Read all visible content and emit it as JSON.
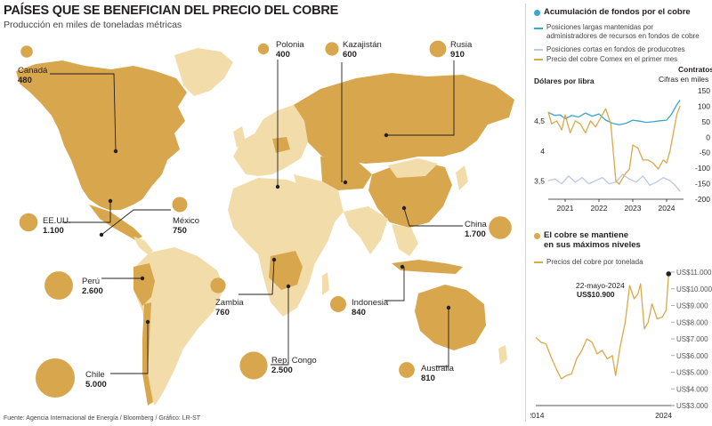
{
  "header": {
    "title": "PAÍSES QUE SE BENEFICIAN DEL PRECIO DEL COBRE",
    "subtitle": "Producción en miles de toneladas métricas"
  },
  "source": "Fuente: Agencia Internacional de Energía / Bloomberg / Gráfico: LR-ST",
  "colors": {
    "land_highlight": "#d8a64d",
    "land_other": "#f2dcaa",
    "bubble": "#d8a64d",
    "blue_line": "#3aa6cc",
    "light_blue_line": "#b9c9e2",
    "gold_line": "#d9a94a",
    "dot": "#231f20"
  },
  "chart_data": [
    {
      "type": "bubble-map",
      "title": "PAÍSES QUE SE BENEFICIAN DEL PRECIO DEL COBRE",
      "subtitle": "Producción en miles de toneladas métricas",
      "countries": [
        {
          "name": "Canadá",
          "value": 480,
          "value_label": "480"
        },
        {
          "name": "Polonia",
          "value": 400,
          "value_label": "400"
        },
        {
          "name": "Kazajistán",
          "value": 600,
          "value_label": "600"
        },
        {
          "name": "Rusia",
          "value": 910,
          "value_label": "910"
        },
        {
          "name": "EE.UU.",
          "value": 1100,
          "value_label": "1.100"
        },
        {
          "name": "México",
          "value": 750,
          "value_label": "750"
        },
        {
          "name": "China",
          "value": 1700,
          "value_label": "1.700"
        },
        {
          "name": "Perú",
          "value": 2600,
          "value_label": "2.600"
        },
        {
          "name": "Zambia",
          "value": 760,
          "value_label": "760"
        },
        {
          "name": "Indonesia",
          "value": 840,
          "value_label": "840"
        },
        {
          "name": "Rep. Congo",
          "value": 2500,
          "value_label": "2.500"
        },
        {
          "name": "Chile",
          "value": 5000,
          "value_label": "5.000"
        },
        {
          "name": "Australia",
          "value": 810,
          "value_label": "810"
        }
      ]
    },
    {
      "type": "line",
      "title": "Acumulación de fondos por el cobre",
      "left_axis_label": "Dólares por libra",
      "right_axis_label": "Contratos",
      "right_axis_sublabel": "Cifras en miles",
      "x_ticks": [
        "2021",
        "2022",
        "2023",
        "2024"
      ],
      "x_range": [
        2020.5,
        2024.5
      ],
      "left_ticks": [
        "3,5",
        "4",
        "4,5"
      ],
      "left_range": [
        3.2,
        5.0
      ],
      "right_ticks": [
        "150",
        "100",
        "50",
        "0",
        "-50",
        "-100",
        "-150",
        "-200"
      ],
      "right_range": [
        -200,
        150
      ],
      "series": [
        {
          "name": "Posiciones largas mantenidas por administradores de recursos en fondos de cobre",
          "axis": "right",
          "color": "#3aa6cc",
          "x": [
            2020.5,
            2020.7,
            2020.85,
            2021.0,
            2021.2,
            2021.4,
            2021.6,
            2021.8,
            2022.0,
            2022.2,
            2022.4,
            2022.6,
            2022.8,
            2023.0,
            2023.2,
            2023.4,
            2023.6,
            2023.8,
            2024.0,
            2024.15,
            2024.3,
            2024.4
          ],
          "y": [
            80,
            70,
            72,
            60,
            70,
            65,
            78,
            68,
            75,
            55,
            45,
            40,
            45,
            55,
            52,
            48,
            50,
            53,
            55,
            75,
            105,
            120
          ]
        },
        {
          "name": "Posiciones cortas en fondos de producotres",
          "axis": "right",
          "color": "#b9c9e2",
          "x": [
            2020.5,
            2020.7,
            2020.9,
            2021.1,
            2021.3,
            2021.5,
            2021.7,
            2021.9,
            2022.1,
            2022.3,
            2022.5,
            2022.7,
            2022.9,
            2023.1,
            2023.3,
            2023.5,
            2023.7,
            2023.9,
            2024.1,
            2024.25,
            2024.4
          ],
          "y": [
            -140,
            -135,
            -150,
            -125,
            -145,
            -130,
            -150,
            -140,
            -130,
            -150,
            -145,
            -120,
            -135,
            -145,
            -125,
            -155,
            -145,
            -130,
            -140,
            -155,
            -175
          ]
        },
        {
          "name": "Precio del cobre Comex en el primer mes",
          "axis": "left",
          "color": "#d9a94a",
          "x": [
            2020.5,
            2020.6,
            2020.75,
            2020.9,
            2021.0,
            2021.15,
            2021.3,
            2021.45,
            2021.6,
            2021.75,
            2021.9,
            2022.0,
            2022.1,
            2022.2,
            2022.35,
            2022.5,
            2022.6,
            2022.75,
            2022.9,
            2023.0,
            2023.15,
            2023.3,
            2023.45,
            2023.6,
            2023.75,
            2023.9,
            2024.0,
            2024.1,
            2024.2,
            2024.3,
            2024.4
          ],
          "y": [
            4.65,
            4.45,
            4.5,
            4.35,
            4.6,
            4.3,
            4.5,
            4.45,
            4.3,
            4.5,
            4.4,
            4.5,
            4.6,
            4.7,
            4.45,
            3.5,
            3.45,
            3.6,
            3.7,
            4.1,
            4.05,
            3.85,
            3.85,
            3.8,
            3.7,
            3.85,
            3.8,
            4.0,
            4.3,
            4.6,
            4.75
          ]
        }
      ]
    },
    {
      "type": "line",
      "title": "El cobre se mantiene en sus máximos niveles",
      "x_ticks": [
        "2014",
        "2024"
      ],
      "x_range": [
        2014,
        2024.45
      ],
      "y_ticks": [
        "US$3.000",
        "US$4.000",
        "US$5.000",
        "US$6.000",
        "US$7.000",
        "US$8.000",
        "US$9.000",
        "US$10.000",
        "US$11.000"
      ],
      "y_range": [
        3000,
        11000
      ],
      "annotation": {
        "date": "22-mayo-2024",
        "value_label": "US$10.900",
        "x": 2024.4,
        "y": 10900
      },
      "series": [
        {
          "name": "Precios del cobre por tonelada",
          "color": "#d9a94a",
          "x": [
            2014.0,
            2014.4,
            2014.8,
            2015.2,
            2015.6,
            2016.0,
            2016.4,
            2016.8,
            2017.2,
            2017.6,
            2018.0,
            2018.4,
            2018.8,
            2019.2,
            2019.6,
            2020.0,
            2020.25,
            2020.6,
            2021.0,
            2021.35,
            2021.7,
            2022.0,
            2022.2,
            2022.5,
            2022.8,
            2023.1,
            2023.5,
            2023.9,
            2024.2,
            2024.4
          ],
          "y": [
            7100,
            6800,
            6700,
            5900,
            5200,
            4600,
            4800,
            4900,
            5800,
            6300,
            7000,
            6800,
            6100,
            6300,
            5800,
            6000,
            4800,
            6500,
            8000,
            10200,
            9400,
            9700,
            10300,
            7600,
            8000,
            9100,
            8200,
            8300,
            8700,
            10900
          ]
        }
      ]
    }
  ],
  "fund_panel": {
    "title": "Acumulación de fondos por el cobre",
    "legend": [
      {
        "label": "Posiciones largas mantenidas por administradores de recursos en fondos de cobre"
      },
      {
        "label": "Posiciones cortas en fondos de producotres"
      },
      {
        "label": "Precio del cobre Comex en el primer mes"
      }
    ],
    "left_axis_label": "Dólares por libra",
    "right_axis_label": "Contratos",
    "right_axis_sublabel": "Cifras en miles"
  },
  "price_panel": {
    "title_line1": "El cobre se mantiene",
    "title_line2": "en sus máximos niveles",
    "legend_label": "Precios del cobre por tonelada",
    "annotation_date": "22-mayo-2024",
    "annotation_value": "US$10.900"
  }
}
